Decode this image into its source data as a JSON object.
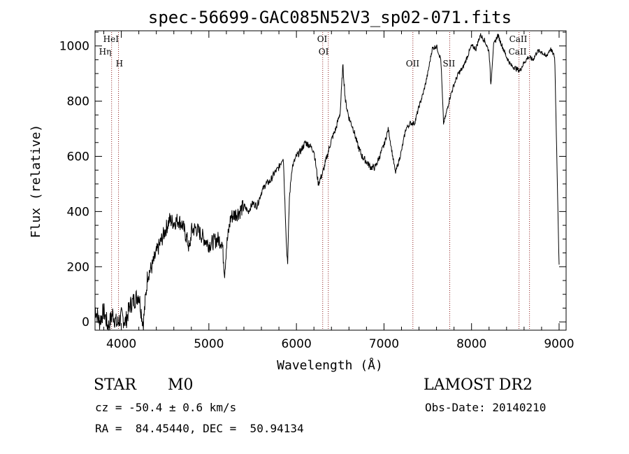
{
  "chart_data": {
    "type": "line",
    "title": "spec-56699-GAC085N52V3_sp02-071.fits",
    "xlabel": "Wavelength (Å)",
    "ylabel": "Flux (relative)",
    "xlim": [
      3700,
      9080
    ],
    "ylim": [
      -30,
      1055
    ],
    "xticks": [
      4000,
      5000,
      6000,
      7000,
      8000,
      9000
    ],
    "yticks": [
      0,
      200,
      400,
      600,
      800,
      1000
    ],
    "grid": false,
    "series_color": "#000000",
    "line_color": "#8b1a1a",
    "spectrum": {
      "name": "",
      "x": [
        3700,
        3750,
        3800,
        3850,
        3900,
        3950,
        4000,
        4050,
        4100,
        4150,
        4200,
        4250,
        4300,
        4350,
        4400,
        4450,
        4500,
        4550,
        4600,
        4650,
        4700,
        4750,
        4780,
        4800,
        4850,
        4900,
        4950,
        5000,
        5050,
        5100,
        5150,
        5180,
        5200,
        5250,
        5300,
        5350,
        5400,
        5450,
        5500,
        5550,
        5600,
        5650,
        5700,
        5750,
        5800,
        5850,
        5870,
        5890,
        5900,
        5920,
        5950,
        6000,
        6050,
        6100,
        6150,
        6200,
        6250,
        6300,
        6350,
        6400,
        6450,
        6500,
        6530,
        6560,
        6600,
        6650,
        6700,
        6750,
        6800,
        6850,
        6900,
        6950,
        7000,
        7050,
        7100,
        7130,
        7150,
        7200,
        7250,
        7300,
        7350,
        7400,
        7450,
        7500,
        7550,
        7600,
        7650,
        7680,
        7700,
        7750,
        7800,
        7850,
        7900,
        7950,
        8000,
        8050,
        8100,
        8150,
        8200,
        8220,
        8250,
        8300,
        8350,
        8400,
        8450,
        8500,
        8550,
        8600,
        8650,
        8700,
        8750,
        8800,
        8850,
        8900,
        8950,
        9000
      ],
      "y": [
        50,
        0,
        40,
        -20,
        30,
        -10,
        20,
        0,
        60,
        80,
        100,
        -10,
        170,
        200,
        250,
        290,
        330,
        370,
        360,
        370,
        350,
        300,
        260,
        330,
        340,
        320,
        300,
        280,
        290,
        300,
        290,
        180,
        270,
        380,
        390,
        400,
        420,
        400,
        430,
        420,
        470,
        500,
        510,
        540,
        560,
        600,
        420,
        250,
        220,
        450,
        560,
        600,
        620,
        650,
        640,
        620,
        500,
        540,
        600,
        660,
        700,
        760,
        930,
        800,
        740,
        700,
        640,
        600,
        580,
        560,
        560,
        600,
        640,
        700,
        600,
        540,
        560,
        620,
        700,
        720,
        720,
        780,
        830,
        900,
        990,
        1000,
        950,
        720,
        740,
        810,
        860,
        900,
        920,
        960,
        1000,
        990,
        1040,
        1020,
        980,
        860,
        1000,
        1040,
        1000,
        960,
        930,
        920,
        910,
        940,
        960,
        950,
        980,
        980,
        960,
        990,
        960,
        200
      ]
    },
    "lines": [
      {
        "label": "HeI",
        "x": 3889
      },
      {
        "label": "Hη",
        "x": 3889
      },
      {
        "label": "H",
        "x": 3968
      },
      {
        "label": "OI",
        "x": 6300
      },
      {
        "label": "OI",
        "x": 6364
      },
      {
        "label": "OII",
        "x": 7330
      },
      {
        "label": "SII",
        "x": 7751
      },
      {
        "label": "CaII",
        "x": 8542
      },
      {
        "label": "CaII",
        "x": 8662
      }
    ]
  },
  "info": {
    "obj_class": "STAR",
    "subclass": "M0",
    "survey": "LAMOST DR2",
    "cz": "cz = -50.4 ± 0.6 km/s",
    "obs_date": "Obs-Date: 20140210",
    "radec": "RA =  84.45440, DEC =  50.94134"
  }
}
